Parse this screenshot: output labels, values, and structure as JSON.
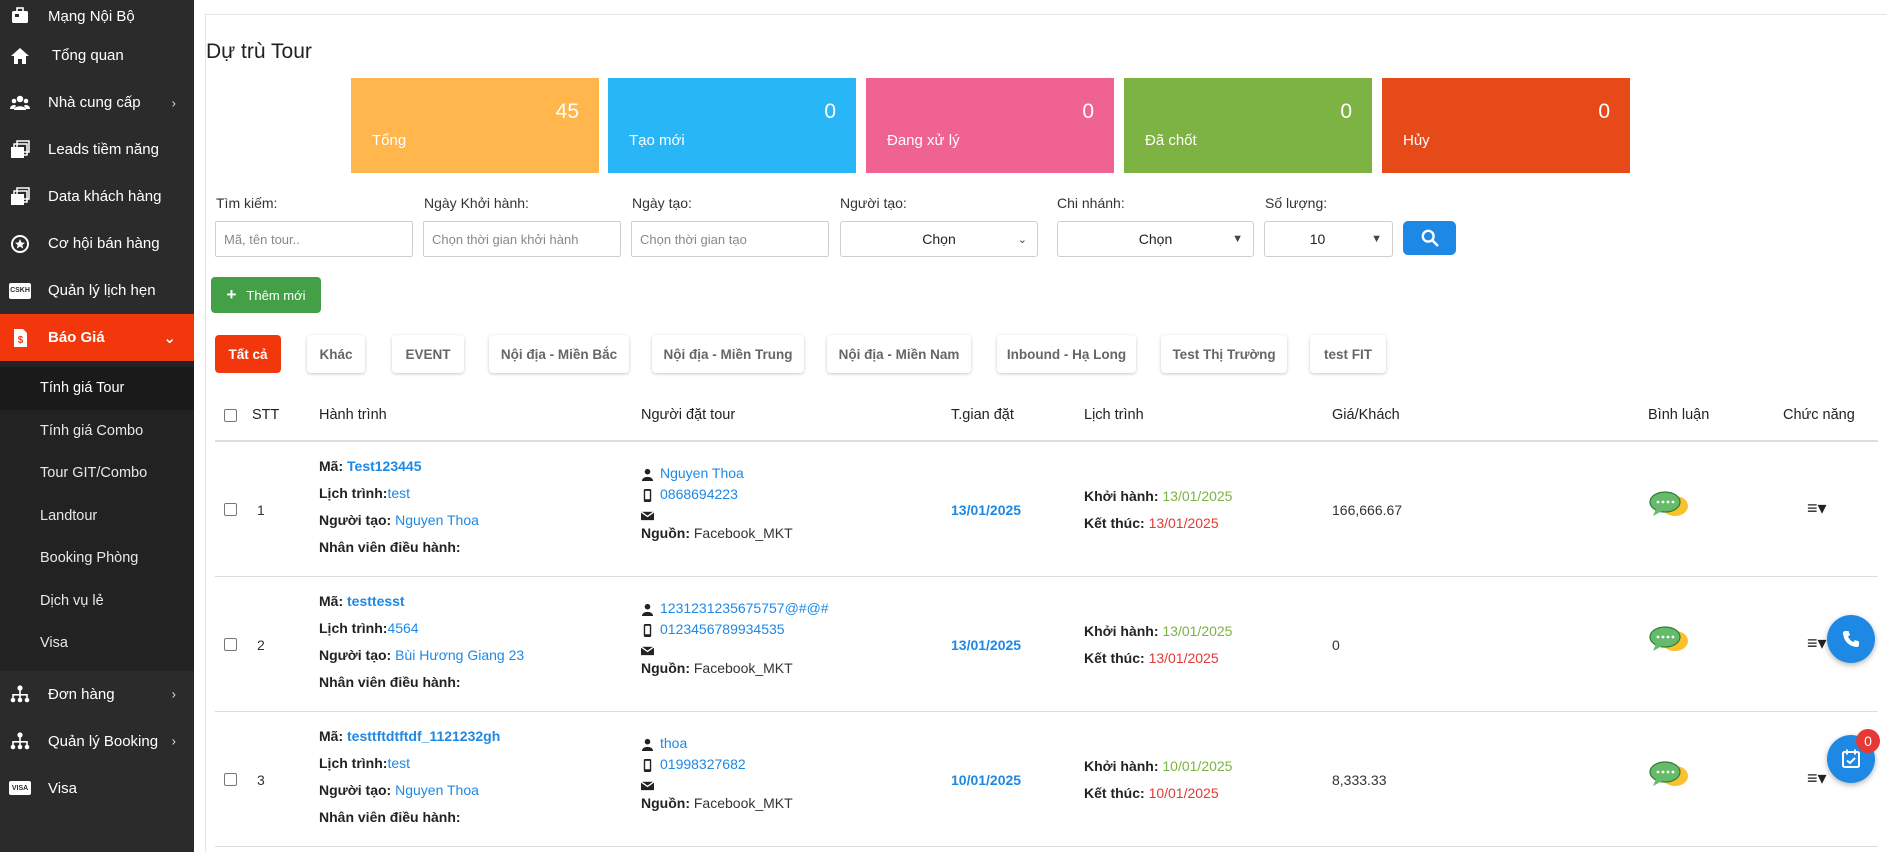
{
  "sidebar": {
    "items": [
      {
        "label": "Mạng Nội Bộ",
        "icon": "briefcase-icon"
      },
      {
        "label": "Tổng quan",
        "icon": "home-icon"
      },
      {
        "label": "Nhà cung cấp",
        "icon": "users-icon",
        "chevron": "›"
      },
      {
        "label": "Leads tiềm năng",
        "icon": "layers-icon"
      },
      {
        "label": "Data khách hàng",
        "icon": "layers-icon"
      },
      {
        "label": "Cơ hội bán hàng",
        "icon": "star-circle-icon"
      },
      {
        "label": "Quản lý lịch hẹn",
        "icon": "cskh-icon",
        "icon_text": "CSKH"
      },
      {
        "label": "Báo Giá",
        "icon": "dollar-file-icon",
        "chevron": "⌄"
      }
    ],
    "sub_items": [
      "Tính giá Tour",
      "Tính giá Combo",
      "Tour GIT/Combo",
      "Landtour",
      "Booking Phòng",
      "Dịch vụ lẻ",
      "Visa"
    ],
    "bottom_items": [
      {
        "label": "Đơn hàng",
        "icon": "network-icon",
        "chevron": "›"
      },
      {
        "label": "Quản lý Booking",
        "icon": "network-icon",
        "chevron": "›"
      },
      {
        "label": "Visa",
        "icon": "visa-card-icon",
        "icon_text": "VISA"
      }
    ]
  },
  "page": {
    "title": "Dự trù Tour"
  },
  "stats": [
    {
      "label": "Tổng",
      "value": "45",
      "color": "#ffb74d"
    },
    {
      "label": "Tạo mới",
      "value": "0",
      "color": "#29b6f6"
    },
    {
      "label": "Đang xử lý",
      "value": "0",
      "color": "#f06292"
    },
    {
      "label": "Đã chốt",
      "value": "0",
      "color": "#7cb342"
    },
    {
      "label": "Hủy",
      "value": "0",
      "color": "#e64a19"
    }
  ],
  "filters": {
    "search": {
      "label": "Tìm kiếm:",
      "placeholder": "Mã, tên tour.."
    },
    "start_date": {
      "label": "Ngày Khởi hành:",
      "placeholder": "Chọn thời gian khởi hành"
    },
    "created_date": {
      "label": "Ngày tạo:",
      "placeholder": "Chọn thời gian tạo"
    },
    "creator": {
      "label": "Người tạo:",
      "value": "Chọn"
    },
    "branch": {
      "label": "Chi nhánh:",
      "value": "Chọn"
    },
    "quantity": {
      "label": "Số lượng:",
      "value": "10"
    }
  },
  "add_button": {
    "label": "Thêm mới"
  },
  "tabs": [
    "Tất cả",
    "Khác",
    "EVENT",
    "Nội địa - Miền Bắc",
    "Nội địa - Miền Trung",
    "Nội địa - Miền Nam",
    "Inbound - Hạ Long",
    "Test Thị Trường",
    "test FIT"
  ],
  "table": {
    "headers": {
      "stt": "STT",
      "route": "Hành trình",
      "booker": "Người đặt tour",
      "booked_time": "T.gian đặt",
      "schedule": "Lịch trình",
      "price": "Giá/Khách",
      "comment": "Bình luận",
      "actions": "Chức năng"
    },
    "labels": {
      "code": "Mã:",
      "itinerary": "Lịch trình:",
      "creator": "Người tạo:",
      "operator": "Nhân viên điều hành:",
      "source": "Nguồn:",
      "start": "Khởi hành:",
      "end": "Kết thúc:"
    },
    "rows": [
      {
        "stt": "1",
        "code": "Test123445",
        "itinerary": "test",
        "creator": "Nguyen Thoa",
        "booker_name": "Nguyen Thoa",
        "phone": "0868694223",
        "source": "Facebook_MKT",
        "booked_time": "13/01/2025",
        "start": "13/01/2025",
        "end": "13/01/2025",
        "price": "166,666.67"
      },
      {
        "stt": "2",
        "code": "testtesst",
        "itinerary": "4564",
        "creator": "Bùi Hương Giang 23",
        "booker_name": "1231231235675757@#@#",
        "phone": "0123456789934535",
        "source": "Facebook_MKT",
        "booked_time": "13/01/2025",
        "start": "13/01/2025",
        "end": "13/01/2025",
        "price": "0"
      },
      {
        "stt": "3",
        "code": "testtftdtftdf_1121232gh",
        "itinerary": "test",
        "creator": "Nguyen Thoa",
        "booker_name": "thoa",
        "phone": "01998327682",
        "source": "Facebook_MKT",
        "booked_time": "10/01/2025",
        "start": "10/01/2025",
        "end": "10/01/2025",
        "price": "8,333.33"
      }
    ]
  },
  "floating": {
    "notification_count": "0"
  }
}
